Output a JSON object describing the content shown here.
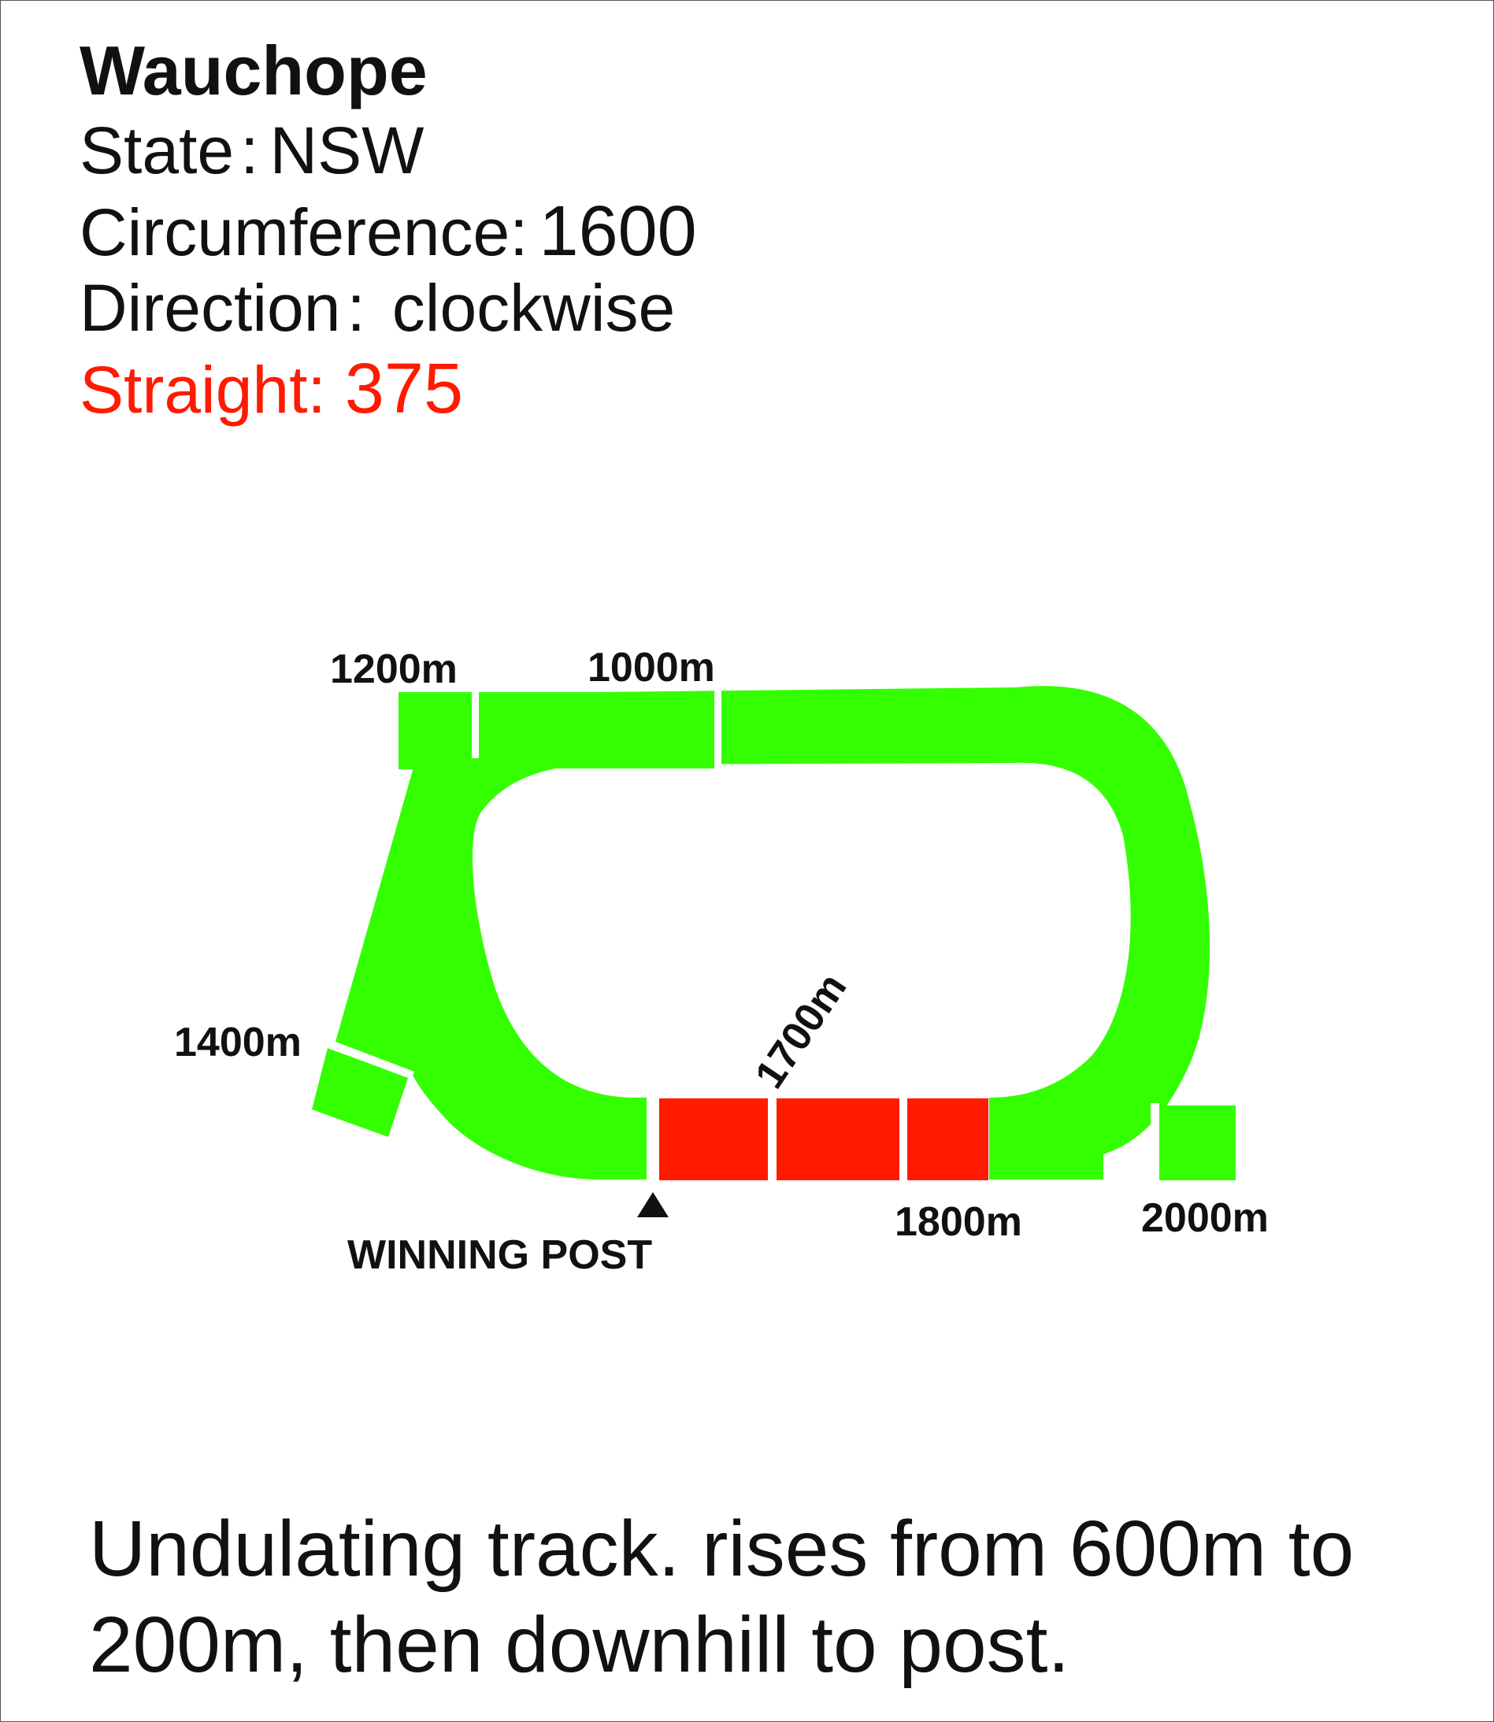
{
  "course": {
    "name": "Wauchope",
    "state_label": "State",
    "state_value": "NSW",
    "circumference_label": "Circumference",
    "circumference_value": "1600",
    "direction_label": "Direction",
    "direction_value": "clockwise",
    "straight_label": "Straight",
    "straight_value": "375",
    "separator": ":"
  },
  "track": {
    "distance_labels": {
      "d1200": "1200m",
      "d1000": "1000m",
      "d1400": "1400m",
      "d1700": "1700m",
      "d1800": "1800m",
      "d2000": "2000m"
    },
    "winning_post_label": "WINNING POST",
    "track_color": "#33ff00",
    "straight_color": "#ff1a00",
    "marker_color": "#111111"
  },
  "notes": {
    "text": "Undulating track. rises from 600m to 200m, then downhill to post."
  }
}
